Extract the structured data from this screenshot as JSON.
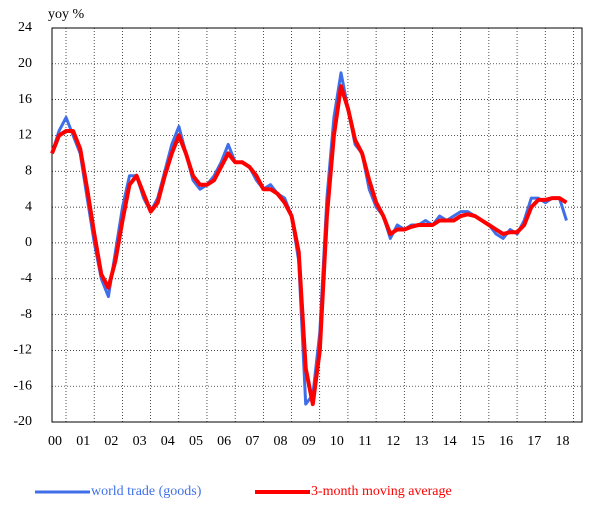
{
  "chart_data": {
    "type": "line",
    "y_axis_label": "yoy %",
    "x": [
      0,
      0.25,
      0.5,
      0.75,
      1,
      1.25,
      1.5,
      1.75,
      2,
      2.25,
      2.5,
      2.75,
      3,
      3.25,
      3.5,
      3.75,
      4,
      4.25,
      4.5,
      4.75,
      5,
      5.25,
      5.5,
      5.75,
      6,
      6.25,
      6.5,
      6.75,
      7,
      7.25,
      7.5,
      7.75,
      8,
      8.25,
      8.5,
      8.75,
      9,
      9.25,
      9.5,
      9.75,
      10,
      10.25,
      10.5,
      10.75,
      11,
      11.25,
      11.5,
      11.75,
      12,
      12.25,
      12.5,
      12.75,
      13,
      13.25,
      13.5,
      13.75,
      14,
      14.25,
      14.5,
      14.75,
      15,
      15.25,
      15.5,
      15.75,
      16,
      16.25,
      16.5,
      16.75,
      17,
      17.25,
      17.5,
      17.75,
      18,
      18.25
    ],
    "series": [
      {
        "name": "world trade (goods)",
        "color": "#3f6fe8",
        "values": [
          10,
          12.5,
          14,
          12,
          10,
          5,
          0,
          -4,
          -6,
          -1,
          4,
          7.5,
          7.5,
          5,
          3.5,
          5,
          8,
          11,
          13,
          10,
          7,
          6,
          6.5,
          7.5,
          9,
          11,
          9,
          9,
          8.5,
          7,
          6,
          6.5,
          5.5,
          5,
          3,
          -2,
          -18,
          -17,
          -10,
          5,
          14,
          19,
          15,
          11,
          10,
          6,
          4,
          3,
          0.5,
          2,
          1.5,
          2,
          2,
          2.5,
          2,
          3,
          2.5,
          3,
          3.5,
          3.5,
          3,
          2.5,
          2,
          1,
          0.5,
          1.5,
          1,
          2.5,
          5,
          5,
          4.5,
          5,
          5,
          2.5
        ]
      },
      {
        "name": "3-month moving average",
        "color": "#ff0000",
        "values": [
          10,
          12,
          12.5,
          12.5,
          10.5,
          6,
          1,
          -3.5,
          -5,
          -2,
          2.5,
          6.5,
          7.5,
          5.5,
          3.5,
          4.5,
          7.5,
          10,
          12,
          10,
          7.5,
          6.5,
          6.5,
          7,
          8.5,
          10,
          9,
          9,
          8.5,
          7.5,
          6,
          6,
          5.5,
          4.5,
          3,
          -1,
          -14,
          -18,
          -12,
          3,
          12,
          17.5,
          15,
          11.5,
          10,
          7,
          4.5,
          3,
          1,
          1.5,
          1.5,
          1.8,
          2,
          2,
          2,
          2.5,
          2.5,
          2.5,
          3,
          3.2,
          3,
          2.5,
          2,
          1.5,
          1,
          1.2,
          1.2,
          2,
          4,
          4.8,
          4.8,
          5,
          5,
          4.5
        ]
      }
    ],
    "xlim": [
      0,
      18.8
    ],
    "xticks": [
      {
        "value": 0,
        "label": "00"
      },
      {
        "value": 1,
        "label": "01"
      },
      {
        "value": 2,
        "label": "02"
      },
      {
        "value": 3,
        "label": "03"
      },
      {
        "value": 4,
        "label": "04"
      },
      {
        "value": 5,
        "label": "05"
      },
      {
        "value": 6,
        "label": "06"
      },
      {
        "value": 7,
        "label": "07"
      },
      {
        "value": 8,
        "label": "08"
      },
      {
        "value": 9,
        "label": "09"
      },
      10,
      11,
      12,
      13,
      14,
      15,
      16,
      17,
      18
    ],
    "ylim": [
      -20,
      24
    ],
    "yticks": [
      -20,
      -16,
      -12,
      -8,
      -4,
      0,
      4,
      8,
      12,
      16,
      20,
      24
    ],
    "grid": true,
    "legend": "bottom"
  }
}
